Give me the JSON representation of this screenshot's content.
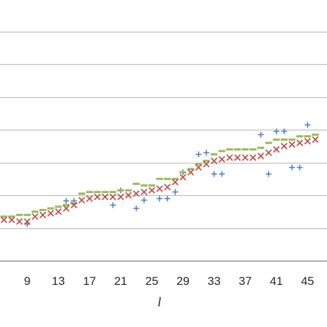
{
  "chart_data": {
    "type": "scatter",
    "title": "",
    "xlabel": "l",
    "ylabel": "",
    "xlim": [
      5.5,
      47.5
    ],
    "ylim": [
      0,
      7.5
    ],
    "grid": "horizontal",
    "x_tick_labels": [
      9,
      13,
      17,
      21,
      25,
      29,
      33,
      37,
      41,
      45
    ],
    "y_gridlines": [
      0,
      1,
      2,
      3,
      4,
      5,
      6,
      7
    ],
    "legend": "none",
    "series": [
      {
        "marker": "plus",
        "color": "#4F81BD",
        "points": [
          [
            9,
            1.12
          ],
          [
            14,
            1.83
          ],
          [
            15,
            1.83
          ],
          [
            20,
            1.7
          ],
          [
            21,
            2.15
          ],
          [
            23,
            1.6
          ],
          [
            24,
            1.85
          ],
          [
            26,
            1.9
          ],
          [
            27,
            1.9
          ],
          [
            28,
            2.1
          ],
          [
            29,
            2.7
          ],
          [
            31,
            3.25
          ],
          [
            32,
            3.3
          ],
          [
            33,
            2.65
          ],
          [
            34,
            2.65
          ],
          [
            39,
            3.85
          ],
          [
            40,
            2.65
          ],
          [
            41,
            3.95
          ],
          [
            42,
            3.95
          ],
          [
            43,
            2.85
          ],
          [
            44,
            2.85
          ],
          [
            45,
            4.15
          ]
        ]
      },
      {
        "marker": "dash",
        "color": "#9BBB59",
        "points": [
          [
            6,
            1.35
          ],
          [
            7,
            1.35
          ],
          [
            8,
            1.4
          ],
          [
            9,
            1.4
          ],
          [
            10,
            1.5
          ],
          [
            11,
            1.55
          ],
          [
            12,
            1.6
          ],
          [
            13,
            1.65
          ],
          [
            14,
            1.7
          ],
          [
            15,
            1.75
          ],
          [
            16,
            2.05
          ],
          [
            17,
            2.1
          ],
          [
            18,
            2.1
          ],
          [
            19,
            2.1
          ],
          [
            20,
            2.1
          ],
          [
            21,
            2.15
          ],
          [
            22,
            2.15
          ],
          [
            23,
            2.35
          ],
          [
            24,
            2.3
          ],
          [
            25,
            2.3
          ],
          [
            26,
            2.5
          ],
          [
            27,
            2.5
          ],
          [
            28,
            2.5
          ],
          [
            29,
            2.7
          ],
          [
            30,
            2.8
          ],
          [
            31,
            2.95
          ],
          [
            32,
            3.05
          ],
          [
            33,
            3.25
          ],
          [
            34,
            3.35
          ],
          [
            35,
            3.4
          ],
          [
            36,
            3.4
          ],
          [
            37,
            3.4
          ],
          [
            38,
            3.4
          ],
          [
            39,
            3.45
          ],
          [
            40,
            3.6
          ],
          [
            41,
            3.7
          ],
          [
            42,
            3.7
          ],
          [
            43,
            3.7
          ],
          [
            44,
            3.8
          ],
          [
            45,
            3.8
          ],
          [
            46,
            3.85
          ]
        ]
      },
      {
        "marker": "cross",
        "color": "#C0504D",
        "points": [
          [
            6,
            1.25
          ],
          [
            7,
            1.25
          ],
          [
            8,
            1.2
          ],
          [
            9,
            1.2
          ],
          [
            10,
            1.35
          ],
          [
            11,
            1.4
          ],
          [
            12,
            1.45
          ],
          [
            13,
            1.5
          ],
          [
            14,
            1.6
          ],
          [
            15,
            1.7
          ],
          [
            16,
            1.85
          ],
          [
            17,
            1.9
          ],
          [
            18,
            1.95
          ],
          [
            19,
            1.95
          ],
          [
            20,
            1.95
          ],
          [
            21,
            1.95
          ],
          [
            22,
            2.0
          ],
          [
            23,
            2.05
          ],
          [
            24,
            2.1
          ],
          [
            25,
            2.15
          ],
          [
            26,
            2.2
          ],
          [
            27,
            2.25
          ],
          [
            28,
            2.4
          ],
          [
            29,
            2.55
          ],
          [
            30,
            2.7
          ],
          [
            31,
            2.85
          ],
          [
            32,
            2.95
          ],
          [
            33,
            3.05
          ],
          [
            34,
            3.1
          ],
          [
            35,
            3.15
          ],
          [
            36,
            3.15
          ],
          [
            37,
            3.15
          ],
          [
            38,
            3.15
          ],
          [
            39,
            3.2
          ],
          [
            40,
            3.3
          ],
          [
            41,
            3.4
          ],
          [
            42,
            3.5
          ],
          [
            43,
            3.55
          ],
          [
            44,
            3.6
          ],
          [
            45,
            3.65
          ],
          [
            46,
            3.7
          ]
        ]
      }
    ]
  }
}
